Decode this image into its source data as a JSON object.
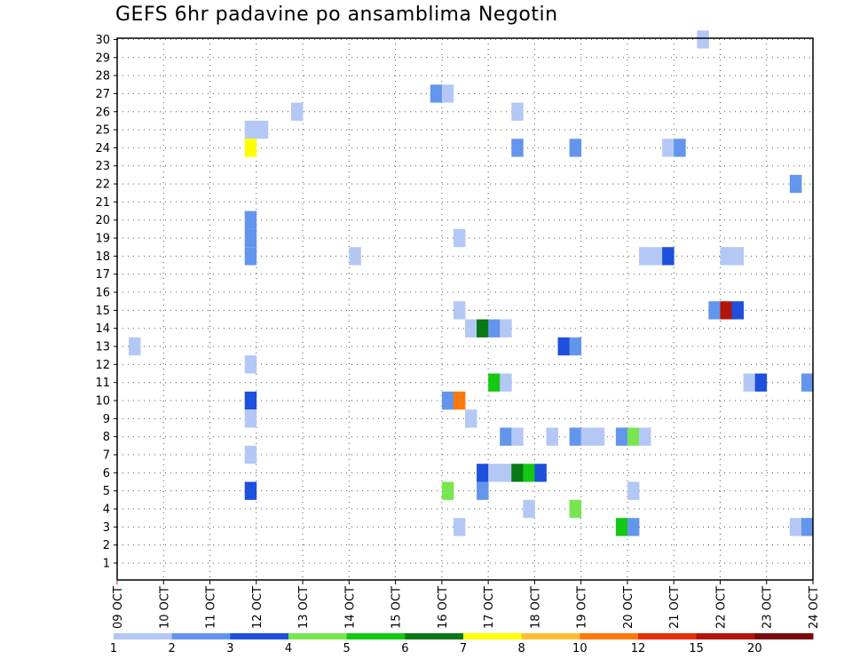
{
  "chart_data": {
    "type": "heatmap",
    "title": "GEFS 6hr padavine po ansamblima Negotin",
    "x_tick_labels": [
      "09 OCT",
      "10 OCT",
      "11 OCT",
      "12 OCT",
      "13 OCT",
      "14 OCT",
      "15 OCT",
      "16 OCT",
      "17 OCT",
      "18 OCT",
      "19 OCT",
      "20 OCT",
      "21 OCT",
      "22 OCT",
      "23 OCT",
      "24 OCT"
    ],
    "x_range_days": [
      0,
      15
    ],
    "y_tick_labels": [
      "1",
      "2",
      "3",
      "4",
      "5",
      "6",
      "7",
      "8",
      "9",
      "10",
      "11",
      "12",
      "13",
      "14",
      "15",
      "16",
      "17",
      "18",
      "19",
      "20",
      "21",
      "22",
      "23",
      "24",
      "25",
      "26",
      "27",
      "28",
      "29",
      "30"
    ],
    "y_range": [
      0,
      30
    ],
    "grid": true,
    "legend": {
      "placement": "bottom",
      "labels": [
        "1",
        "2",
        "3",
        "4",
        "5",
        "6",
        "7",
        "8",
        "10",
        "12",
        "15",
        "20"
      ],
      "colors": [
        "#b4c8f5",
        "#6495ed",
        "#1e50dc",
        "#78e650",
        "#14c814",
        "#0a7814",
        "#ffff00",
        "#ffbe32",
        "#ff780a",
        "#e62d0a",
        "#b4140a",
        "#780a0a"
      ]
    },
    "cells_x_unit": "day offset from 09 OCT (6-hour steps)",
    "cells": [
      {
        "x": 0.25,
        "member": 13,
        "bin": 1
      },
      {
        "x": 2.75,
        "member": 25,
        "bin": 1
      },
      {
        "x": 3.0,
        "member": 25,
        "bin": 1
      },
      {
        "x": 2.75,
        "member": 24,
        "bin": 7
      },
      {
        "x": 2.75,
        "member": 20,
        "bin": 2
      },
      {
        "x": 2.75,
        "member": 19,
        "bin": 2
      },
      {
        "x": 2.75,
        "member": 18,
        "bin": 2
      },
      {
        "x": 2.75,
        "member": 12,
        "bin": 1
      },
      {
        "x": 2.75,
        "member": 10,
        "bin": 3
      },
      {
        "x": 2.75,
        "member": 9,
        "bin": 1
      },
      {
        "x": 2.75,
        "member": 7,
        "bin": 1
      },
      {
        "x": 2.75,
        "member": 5,
        "bin": 3
      },
      {
        "x": 3.75,
        "member": 26,
        "bin": 1
      },
      {
        "x": 5.0,
        "member": 18,
        "bin": 1
      },
      {
        "x": 6.75,
        "member": 27,
        "bin": 2
      },
      {
        "x": 7.0,
        "member": 27,
        "bin": 1
      },
      {
        "x": 7.0,
        "member": 10,
        "bin": 2
      },
      {
        "x": 7.25,
        "member": 10,
        "bin": 9
      },
      {
        "x": 7.0,
        "member": 5,
        "bin": 4
      },
      {
        "x": 7.25,
        "member": 19,
        "bin": 1
      },
      {
        "x": 7.25,
        "member": 15,
        "bin": 1
      },
      {
        "x": 7.25,
        "member": 3,
        "bin": 1
      },
      {
        "x": 7.5,
        "member": 14,
        "bin": 1
      },
      {
        "x": 7.75,
        "member": 14,
        "bin": 6
      },
      {
        "x": 8.0,
        "member": 14,
        "bin": 2
      },
      {
        "x": 8.25,
        "member": 14,
        "bin": 1
      },
      {
        "x": 7.5,
        "member": 9,
        "bin": 1
      },
      {
        "x": 7.75,
        "member": 6,
        "bin": 3
      },
      {
        "x": 8.0,
        "member": 6,
        "bin": 1
      },
      {
        "x": 8.25,
        "member": 6,
        "bin": 1
      },
      {
        "x": 8.5,
        "member": 6,
        "bin": 6
      },
      {
        "x": 8.75,
        "member": 6,
        "bin": 5
      },
      {
        "x": 9.0,
        "member": 6,
        "bin": 3
      },
      {
        "x": 7.75,
        "member": 5,
        "bin": 2
      },
      {
        "x": 8.0,
        "member": 11,
        "bin": 5
      },
      {
        "x": 8.25,
        "member": 11,
        "bin": 1
      },
      {
        "x": 8.25,
        "member": 8,
        "bin": 2
      },
      {
        "x": 8.5,
        "member": 8,
        "bin": 1
      },
      {
        "x": 8.5,
        "member": 26,
        "bin": 1
      },
      {
        "x": 8.5,
        "member": 24,
        "bin": 2
      },
      {
        "x": 8.75,
        "member": 4,
        "bin": 1
      },
      {
        "x": 9.25,
        "member": 8,
        "bin": 1
      },
      {
        "x": 9.5,
        "member": 13,
        "bin": 3
      },
      {
        "x": 9.75,
        "member": 13,
        "bin": 2
      },
      {
        "x": 9.75,
        "member": 24,
        "bin": 2
      },
      {
        "x": 9.75,
        "member": 8,
        "bin": 2
      },
      {
        "x": 10.0,
        "member": 8,
        "bin": 1
      },
      {
        "x": 10.25,
        "member": 8,
        "bin": 1
      },
      {
        "x": 9.75,
        "member": 4,
        "bin": 4
      },
      {
        "x": 10.75,
        "member": 8,
        "bin": 2
      },
      {
        "x": 11.0,
        "member": 8,
        "bin": 4
      },
      {
        "x": 11.25,
        "member": 8,
        "bin": 1
      },
      {
        "x": 10.75,
        "member": 3,
        "bin": 5
      },
      {
        "x": 11.0,
        "member": 3,
        "bin": 2
      },
      {
        "x": 11.0,
        "member": 5,
        "bin": 1
      },
      {
        "x": 11.25,
        "member": 18,
        "bin": 1
      },
      {
        "x": 11.5,
        "member": 18,
        "bin": 1
      },
      {
        "x": 11.75,
        "member": 18,
        "bin": 3
      },
      {
        "x": 11.75,
        "member": 24,
        "bin": 1
      },
      {
        "x": 12.0,
        "member": 24,
        "bin": 2
      },
      {
        "x": 12.5,
        "member": 30,
        "bin": 1
      },
      {
        "x": 12.75,
        "member": 15,
        "bin": 2
      },
      {
        "x": 13.0,
        "member": 15,
        "bin": 11
      },
      {
        "x": 13.25,
        "member": 15,
        "bin": 3
      },
      {
        "x": 13.0,
        "member": 18,
        "bin": 1
      },
      {
        "x": 13.25,
        "member": 18,
        "bin": 1
      },
      {
        "x": 13.5,
        "member": 11,
        "bin": 1
      },
      {
        "x": 13.75,
        "member": 11,
        "bin": 3
      },
      {
        "x": 14.5,
        "member": 22,
        "bin": 2
      },
      {
        "x": 14.5,
        "member": 3,
        "bin": 1
      },
      {
        "x": 14.75,
        "member": 3,
        "bin": 2
      },
      {
        "x": 14.75,
        "member": 11,
        "bin": 2
      }
    ]
  }
}
